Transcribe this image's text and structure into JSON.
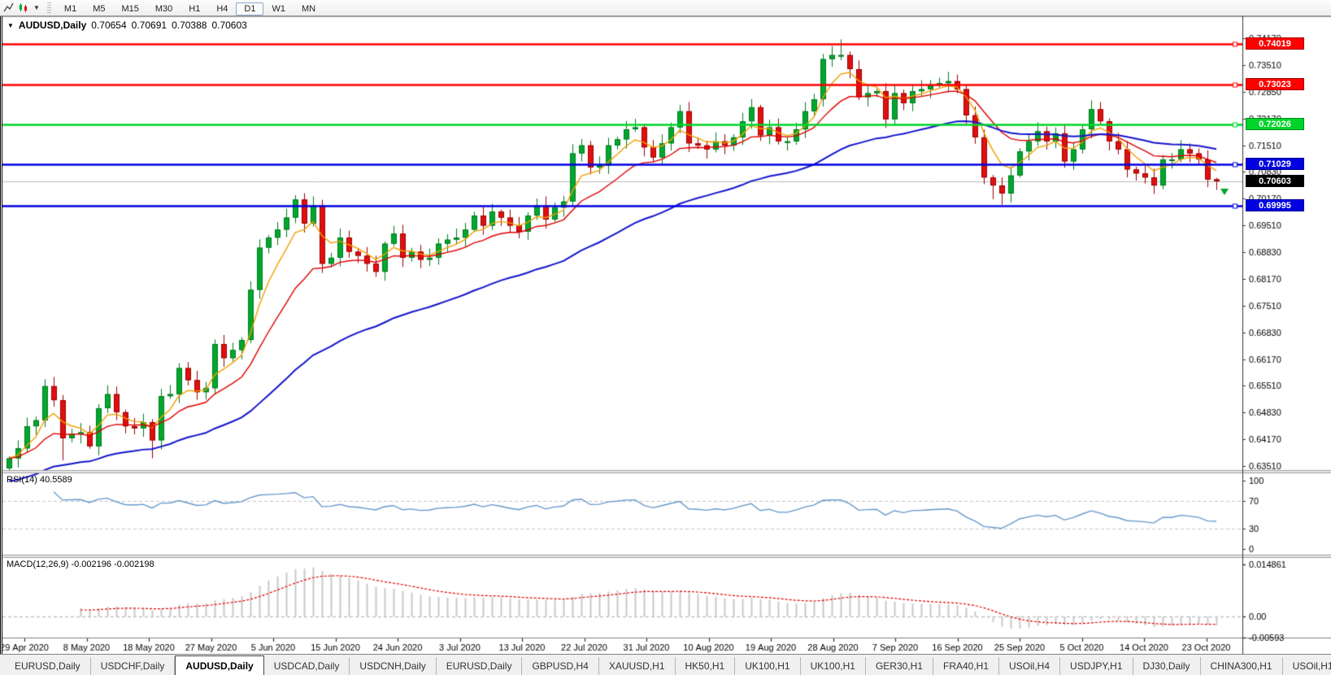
{
  "toolbar": {
    "timeframes": [
      "M1",
      "M5",
      "M15",
      "M30",
      "H1",
      "H4",
      "D1",
      "W1",
      "MN"
    ],
    "active_timeframe": "D1"
  },
  "chart": {
    "symbol_period": "AUDUSD,Daily",
    "open": "0.70654",
    "high": "0.70691",
    "low": "0.70388",
    "close": "0.70603"
  },
  "price_axis": {
    "labels": [
      "0.74170",
      "0.73510",
      "0.72850",
      "0.72170",
      "0.71510",
      "0.70830",
      "0.70170",
      "0.69510",
      "0.68830",
      "0.68170",
      "0.67510",
      "0.66830",
      "0.66170",
      "0.65510",
      "0.64830",
      "0.64170",
      "0.63510"
    ],
    "top_value": 0.7417,
    "bottom_value": 0.6351
  },
  "levels": [
    {
      "label": "0.74019",
      "value": 0.74019,
      "color": "#ff0000",
      "kind": "resistance"
    },
    {
      "label": "0.73023",
      "value": 0.73023,
      "color": "#ff0000",
      "kind": "resistance"
    },
    {
      "label": "0.72026",
      "value": 0.72026,
      "color": "#00d42a",
      "kind": "pivot"
    },
    {
      "label": "0.71029",
      "value": 0.71029,
      "color": "#0000e0",
      "kind": "support"
    },
    {
      "label": "0.70603",
      "value": 0.70603,
      "color": "#000000",
      "kind": "current-price"
    },
    {
      "label": "0.69995",
      "value": 0.69995,
      "color": "#0000e0",
      "kind": "support"
    }
  ],
  "date_axis": {
    "labels": [
      "29 Apr 2020",
      "8 May 2020",
      "18 May 2020",
      "27 May 2020",
      "5 Jun 2020",
      "15 Jun 2020",
      "24 Jun 2020",
      "3 Jul 2020",
      "13 Jul 2020",
      "22 Jul 2020",
      "31 Jul 2020",
      "10 Aug 2020",
      "19 Aug 2020",
      "28 Aug 2020",
      "7 Sep 2020",
      "16 Sep 2020",
      "25 Sep 2020",
      "5 Oct 2020",
      "14 Oct 2020",
      "23 Oct 2020"
    ]
  },
  "rsi": {
    "label": "RSI(14) 40.5589",
    "value": 40.5589,
    "axis_labels": [
      "100",
      "70",
      "30",
      "0"
    ],
    "axis_values": [
      100,
      70,
      30,
      0
    ],
    "line_color": "#6699cc"
  },
  "macd": {
    "label": "MACD(12,26,9) -0.002196 -0.002198",
    "value": -0.002196,
    "signal": -0.002198,
    "axis_labels": [
      "0.014861",
      "0.00",
      "-0.00593"
    ],
    "axis_values": [
      0.014861,
      0,
      -0.00593
    ],
    "histogram_color": "#c8c8c8",
    "signal_color": "#e00000"
  },
  "tabs": {
    "active_index": 2,
    "items": [
      "EURUSD,Daily",
      "USDCHF,Daily",
      "AUDUSD,Daily",
      "USDCAD,Daily",
      "USDCNH,Daily",
      "EURUSD,Daily",
      "GBPUSD,H4",
      "XAUUSD,H1",
      "HK50,H1",
      "UK100,H1",
      "UK100,H1",
      "GER30,H1",
      "FRA40,H1",
      "USOil,H4",
      "USDJPY,H1",
      "DJ30,Daily",
      "CHINA300,H1",
      "USOil,H1"
    ],
    "scroll_left": "◂",
    "scroll_right": "▸"
  },
  "chart_data": {
    "type": "candlestick",
    "symbol": "AUDUSD",
    "timeframe": "Daily",
    "title": "AUDUSD,Daily 0.70654 0.70691 0.70388 0.70603",
    "price_range": [
      0.6351,
      0.7417
    ],
    "hlines": [
      0.74019,
      0.73023,
      0.72026,
      0.71029,
      0.69995
    ],
    "current_price": 0.70603,
    "last_ohlc": [
      0.70654,
      0.70691,
      0.70388,
      0.70603
    ],
    "closes": [
      0.637,
      0.6395,
      0.645,
      0.6465,
      0.655,
      0.6515,
      0.642,
      0.643,
      0.6435,
      0.64,
      0.6495,
      0.653,
      0.6485,
      0.645,
      0.6445,
      0.646,
      0.6415,
      0.6525,
      0.653,
      0.6595,
      0.6565,
      0.6535,
      0.6545,
      0.6655,
      0.662,
      0.664,
      0.6665,
      0.679,
      0.6895,
      0.692,
      0.694,
      0.697,
      0.7015,
      0.6955,
      0.7,
      0.6855,
      0.687,
      0.692,
      0.6885,
      0.6875,
      0.6855,
      0.6835,
      0.6905,
      0.693,
      0.687,
      0.6885,
      0.6865,
      0.687,
      0.6905,
      0.6915,
      0.692,
      0.694,
      0.6975,
      0.695,
      0.6985,
      0.697,
      0.695,
      0.6935,
      0.6975,
      0.7,
      0.6965,
      0.6995,
      0.701,
      0.713,
      0.715,
      0.7095,
      0.71,
      0.715,
      0.7165,
      0.719,
      0.7195,
      0.7145,
      0.712,
      0.7155,
      0.7195,
      0.7235,
      0.7155,
      0.715,
      0.714,
      0.716,
      0.715,
      0.717,
      0.721,
      0.7245,
      0.7175,
      0.7195,
      0.716,
      0.716,
      0.719,
      0.7235,
      0.7265,
      0.7365,
      0.7375,
      0.7375,
      0.734,
      0.727,
      0.728,
      0.7285,
      0.7215,
      0.728,
      0.7255,
      0.7285,
      0.729,
      0.73,
      0.7305,
      0.731,
      0.729,
      0.7225,
      0.717,
      0.707,
      0.705,
      0.703,
      0.7075,
      0.7135,
      0.716,
      0.7185,
      0.716,
      0.718,
      0.711,
      0.714,
      0.719,
      0.724,
      0.721,
      0.716,
      0.714,
      0.709,
      0.708,
      0.707,
      0.705,
      0.7115,
      0.7115,
      0.714,
      0.713,
      0.7115,
      0.7065,
      0.70603
    ],
    "first_open": 0.6345,
    "wick_overrides": {
      "6": {
        "l": 0.6365
      },
      "16": {
        "l": 0.637
      },
      "93": {
        "h": 0.7414
      },
      "110": {
        "l": 0.7016
      },
      "111": {
        "l": 0.7002
      },
      "135": {
        "o": 0.70654,
        "h": 0.70691,
        "l": 0.70388,
        "c": 0.70603
      }
    },
    "moving_averages": [
      {
        "name": "fast",
        "period": 5,
        "color": "#f0a000",
        "seed": null
      },
      {
        "name": "medium",
        "period": 13,
        "color": "#e00000",
        "seed": null
      },
      {
        "name": "slow",
        "period": 40,
        "color": "#1515cc",
        "seed": 0.631
      }
    ],
    "candle_up_color": "#00a82e",
    "candle_down_color": "#e01010",
    "grid": false,
    "legend_position": "none"
  }
}
